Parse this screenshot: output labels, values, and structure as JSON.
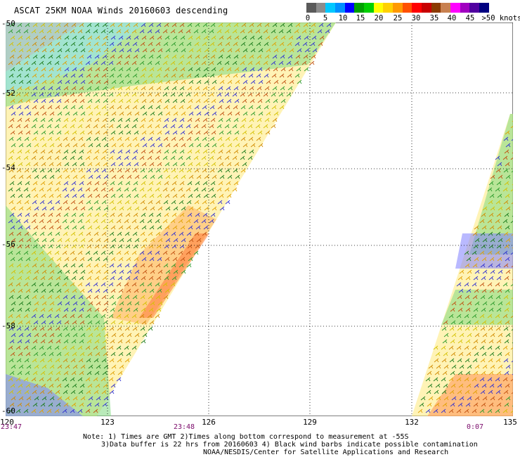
{
  "title": "ASCAT 25KM NOAA Winds 20160603 descending",
  "speed_scale": {
    "colors": [
      "#5a5a5a",
      "#8c8c8c",
      "#00c8ff",
      "#0090ff",
      "#0000ff",
      "#00a000",
      "#00d000",
      "#ffff00",
      "#ffd000",
      "#ff9900",
      "#ff5000",
      "#ff0000",
      "#c80000",
      "#8b3a00",
      "#c88050",
      "#ff00ff",
      "#a000c0",
      "#5000a0",
      "#000080"
    ],
    "labels": [
      "0",
      "5",
      "10",
      "15",
      "20",
      "25",
      "30",
      "35",
      "40",
      "45",
      ">50 knots"
    ]
  },
  "lat_labels": [
    "-50",
    "-52",
    "-54",
    "-56",
    "-58",
    "-60"
  ],
  "lon_labels": [
    "120",
    "123",
    "126",
    "129",
    "132",
    "135"
  ],
  "time_labels": [
    "23:47",
    "23:48",
    "0:07"
  ],
  "notes": [
    "Note: 1) Times are GMT 2)Times along bottom correspond to measurement at -55S",
    "3)Data buffer is 22 hrs from 20160603 4) Black wind barbs indicate possible contamination",
    "NOAA/NESDIS/Center for Satellite Applications and Research"
  ]
}
